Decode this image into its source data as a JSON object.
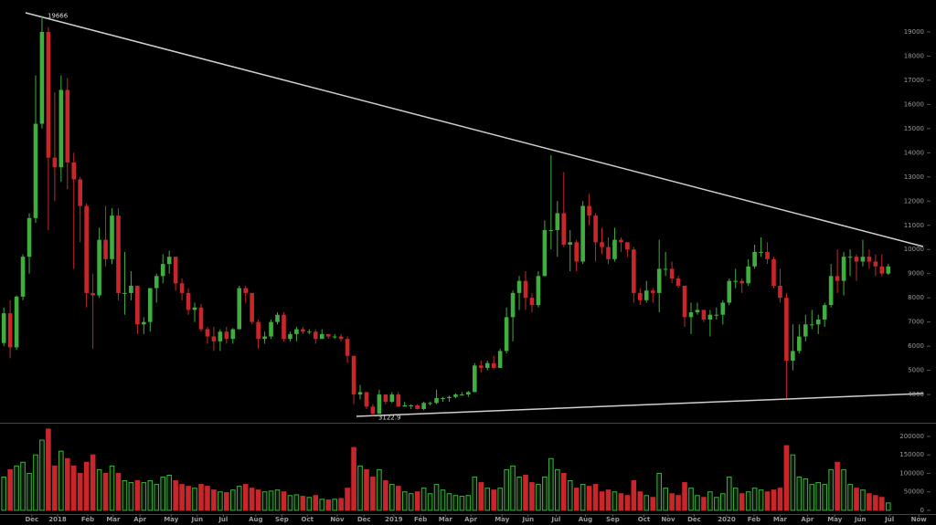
{
  "chart_data": {
    "type": "candlestick",
    "up_color": "#3fae3f",
    "down_color": "#c8262b",
    "x": [
      0,
      1,
      2,
      3,
      4,
      5,
      6,
      7,
      8,
      9,
      10,
      11,
      12,
      13,
      14,
      15,
      16,
      17,
      18,
      19,
      20,
      21,
      22,
      23,
      24,
      25,
      26,
      27,
      28,
      29,
      30,
      31,
      32,
      33,
      34,
      35,
      36,
      37,
      38,
      39,
      40,
      41,
      42,
      43,
      44,
      45,
      46,
      47,
      48,
      49,
      50,
      51,
      52,
      53,
      54,
      55,
      56,
      57,
      58,
      59,
      60,
      61,
      62,
      63,
      64,
      65,
      66,
      67,
      68,
      69,
      70,
      71,
      72,
      73,
      74,
      75,
      76,
      77,
      78,
      79,
      80,
      81,
      82,
      83,
      84,
      85,
      86,
      87,
      88,
      89,
      90,
      91,
      92,
      93,
      94,
      95,
      96,
      97,
      98,
      99,
      100,
      101,
      102,
      103,
      104,
      105,
      106,
      107,
      108,
      109,
      110,
      111,
      112,
      113,
      114,
      115,
      116,
      117,
      118,
      119,
      120,
      121,
      122,
      123,
      124,
      125,
      126,
      127,
      128,
      129,
      130,
      131,
      132,
      133,
      134,
      135,
      136,
      137,
      138,
      139
    ],
    "open": [
      6130,
      7360,
      5950,
      8050,
      9700,
      11300,
      15200,
      19000,
      13800,
      13400,
      16600,
      13600,
      12900,
      11800,
      8200,
      8100,
      10400,
      9600,
      11400,
      8200,
      8200,
      8500,
      6900,
      7000,
      8400,
      8900,
      9400,
      9700,
      8600,
      8200,
      7500,
      7600,
      6700,
      6400,
      6200,
      6600,
      6300,
      6700,
      8400,
      8200,
      7000,
      6300,
      6400,
      7000,
      7300,
      6300,
      6500,
      6700,
      6600,
      6600,
      6300,
      6500,
      6400,
      6400,
      6300,
      5600,
      4000,
      4100,
      3500,
      3200,
      4000,
      3700,
      4000,
      3500,
      3550,
      3550,
      3400,
      3650,
      3650,
      3850,
      3850,
      3900,
      4000,
      4000,
      4100,
      5200,
      5100,
      5300,
      5100,
      5800,
      7200,
      8200,
      8700,
      8000,
      7700,
      8900,
      10800,
      10800,
      11500,
      10200,
      10300,
      9500,
      11800,
      11400,
      10300,
      10100,
      9600,
      10400,
      10300,
      10000,
      8200,
      7900,
      8300,
      8200,
      9200,
      9200,
      8800,
      8500,
      7200,
      7400,
      7500,
      7100,
      7300,
      7300,
      7800,
      8700,
      8700,
      8600,
      9300,
      9900,
      9900,
      9600,
      8500,
      8000,
      5400,
      5800,
      6400,
      6900,
      6900,
      7100,
      7700,
      8900,
      8700,
      9700,
      9700,
      9500,
      9700,
      9500,
      9300,
      9000
    ],
    "high": [
      7600,
      7900,
      8100,
      9800,
      11500,
      17200,
      19666,
      19200,
      16500,
      17200,
      17100,
      14000,
      13000,
      11900,
      9000,
      10900,
      11800,
      11700,
      11700,
      9900,
      9100,
      8500,
      7200,
      8400,
      9000,
      9800,
      9950,
      9700,
      8800,
      8400,
      7800,
      7750,
      6800,
      6800,
      6700,
      6800,
      6750,
      8500,
      8500,
      8200,
      7100,
      6600,
      7100,
      7400,
      7400,
      6600,
      6800,
      6800,
      6700,
      6700,
      6700,
      6500,
      6500,
      6500,
      6400,
      5600,
      4400,
      4100,
      3600,
      4200,
      4000,
      4100,
      4100,
      3700,
      3600,
      3600,
      3700,
      3700,
      4200,
      3900,
      3950,
      4050,
      4100,
      4150,
      5300,
      5400,
      5400,
      5600,
      5900,
      7600,
      8300,
      8900,
      9100,
      8200,
      9100,
      11200,
      13900,
      12000,
      13200,
      10800,
      10400,
      12000,
      12300,
      11500,
      10900,
      10500,
      10900,
      10500,
      10300,
      10100,
      8400,
      8700,
      8400,
      10400,
      9900,
      9500,
      8900,
      8500,
      7800,
      7800,
      7500,
      7500,
      7600,
      7900,
      8800,
      9200,
      8800,
      9600,
      10200,
      10500,
      10300,
      9700,
      9200,
      8200,
      6900,
      6900,
      7300,
      7500,
      7300,
      7800,
      9400,
      10000,
      9900,
      10000,
      9800,
      10400,
      10000,
      9800,
      9800,
      9400
    ],
    "low": [
      6000,
      5500,
      5850,
      7900,
      9000,
      11100,
      15000,
      10800,
      12000,
      12800,
      12500,
      9200,
      10300,
      7600,
      5900,
      8000,
      9300,
      9400,
      7900,
      7300,
      7900,
      6500,
      6500,
      6600,
      7800,
      8600,
      9000,
      8300,
      7900,
      7300,
      7000,
      6600,
      6100,
      5800,
      5800,
      6100,
      6100,
      6700,
      7800,
      6900,
      5900,
      6100,
      6300,
      6900,
      6200,
      6200,
      6200,
      6500,
      6500,
      6100,
      6300,
      6300,
      6300,
      6200,
      5300,
      3600,
      3800,
      3400,
      3122.9,
      3200,
      3600,
      3650,
      3500,
      3500,
      3400,
      3380,
      3350,
      3550,
      3600,
      3700,
      3700,
      3850,
      3950,
      3900,
      4100,
      4900,
      5000,
      5050,
      5100,
      5700,
      6200,
      7500,
      7500,
      7400,
      7600,
      8900,
      10000,
      9700,
      10100,
      9100,
      9100,
      9400,
      11000,
      9500,
      9800,
      9400,
      9500,
      9900,
      9700,
      7800,
      7700,
      7800,
      7800,
      7400,
      8900,
      8600,
      8400,
      6800,
      6500,
      7300,
      7000,
      6400,
      7100,
      6900,
      7700,
      8400,
      8200,
      8500,
      9200,
      9700,
      9400,
      8400,
      7800,
      3850,
      5000,
      5700,
      6200,
      6700,
      6500,
      6800,
      7600,
      8200,
      8100,
      8900,
      8700,
      9300,
      9200,
      8900,
      8900,
      8950
    ],
    "close": [
      7360,
      5950,
      8050,
      9700,
      11300,
      15200,
      19000,
      13800,
      13400,
      16600,
      13600,
      12900,
      11800,
      8200,
      8100,
      10400,
      9600,
      11400,
      8200,
      8200,
      8500,
      6900,
      7000,
      8400,
      8900,
      9400,
      9700,
      8600,
      8200,
      7500,
      7600,
      6700,
      6400,
      6200,
      6600,
      6300,
      6700,
      8400,
      8200,
      7000,
      6300,
      6400,
      7000,
      7300,
      6300,
      6500,
      6700,
      6600,
      6600,
      6300,
      6500,
      6400,
      6400,
      6300,
      5600,
      4000,
      4100,
      3500,
      3200,
      4000,
      3700,
      4000,
      3500,
      3550,
      3550,
      3400,
      3650,
      3650,
      3850,
      3850,
      3900,
      4000,
      4000,
      4100,
      5200,
      5100,
      5300,
      5100,
      5800,
      7200,
      8200,
      8700,
      8000,
      7700,
      8900,
      10800,
      10800,
      11500,
      10200,
      10300,
      9500,
      11800,
      11400,
      10300,
      10100,
      9600,
      10400,
      10300,
      10000,
      8200,
      7900,
      8300,
      8200,
      9200,
      9200,
      8800,
      8500,
      7200,
      7400,
      7500,
      7100,
      7300,
      7300,
      7800,
      8700,
      8700,
      8600,
      9300,
      9900,
      9900,
      9600,
      8500,
      8000,
      5400,
      5800,
      6400,
      6900,
      6900,
      7100,
      7700,
      8900,
      8700,
      9700,
      9700,
      9500,
      9700,
      9500,
      9300,
      9000,
      9300
    ],
    "volume": [
      90000,
      110000,
      120000,
      130000,
      100000,
      150000,
      190000,
      220000,
      120000,
      160000,
      140000,
      120000,
      100000,
      130000,
      150000,
      110000,
      100000,
      120000,
      100000,
      80000,
      75000,
      80000,
      75000,
      80000,
      70000,
      90000,
      95000,
      80000,
      70000,
      65000,
      60000,
      70000,
      65000,
      55000,
      50000,
      48000,
      55000,
      65000,
      70000,
      60000,
      55000,
      50000,
      52000,
      55000,
      50000,
      40000,
      42000,
      38000,
      35000,
      40000,
      30000,
      28000,
      30000,
      32000,
      60000,
      170000,
      120000,
      110000,
      90000,
      110000,
      80000,
      70000,
      65000,
      50000,
      45000,
      50000,
      60000,
      45000,
      70000,
      55000,
      45000,
      40000,
      38000,
      40000,
      90000,
      75000,
      60000,
      55000,
      60000,
      110000,
      120000,
      90000,
      95000,
      75000,
      70000,
      90000,
      140000,
      110000,
      100000,
      80000,
      60000,
      70000,
      65000,
      70000,
      50000,
      55000,
      50000,
      45000,
      40000,
      80000,
      50000,
      40000,
      35000,
      100000,
      60000,
      45000,
      40000,
      75000,
      60000,
      40000,
      35000,
      50000,
      35000,
      45000,
      90000,
      60000,
      45000,
      50000,
      60000,
      55000,
      50000,
      55000,
      60000,
      175000,
      150000,
      90000,
      85000,
      70000,
      75000,
      70000,
      110000,
      130000,
      110000,
      70000,
      60000,
      55000,
      45000,
      40000,
      35000,
      20000
    ],
    "xlim": [
      -0.6,
      146.5
    ],
    "xticks": [
      {
        "value": 4.4,
        "label": "Dec"
      },
      {
        "value": 8.45,
        "label": "2018"
      },
      {
        "value": 13.2,
        "label": "Feb"
      },
      {
        "value": 17.2,
        "label": "Mar"
      },
      {
        "value": 21.4,
        "label": "Apr"
      },
      {
        "value": 26.3,
        "label": "May"
      },
      {
        "value": 30.4,
        "label": "Jun"
      },
      {
        "value": 34.5,
        "label": "Jul"
      },
      {
        "value": 39.6,
        "label": "Aug"
      },
      {
        "value": 43.7,
        "label": "Sep"
      },
      {
        "value": 47.7,
        "label": "Oct"
      },
      {
        "value": 52.4,
        "label": "Nov"
      },
      {
        "value": 56.6,
        "label": "Dec"
      },
      {
        "value": 61.3,
        "label": "2019"
      },
      {
        "value": 65.5,
        "label": "Feb"
      },
      {
        "value": 69.4,
        "label": "Mar"
      },
      {
        "value": 73.4,
        "label": "Apr"
      },
      {
        "value": 78.3,
        "label": "May"
      },
      {
        "value": 82.4,
        "label": "Jun"
      },
      {
        "value": 86.8,
        "label": "Jul"
      },
      {
        "value": 91.4,
        "label": "Aug"
      },
      {
        "value": 95.7,
        "label": "Sep"
      },
      {
        "value": 100.6,
        "label": "Oct"
      },
      {
        "value": 104.4,
        "label": "Nov"
      },
      {
        "value": 108.5,
        "label": "Dec"
      },
      {
        "value": 113.6,
        "label": "2020"
      },
      {
        "value": 117.9,
        "label": "Feb"
      },
      {
        "value": 122,
        "label": "Mar"
      },
      {
        "value": 126.3,
        "label": "Apr"
      },
      {
        "value": 130.6,
        "label": "May"
      },
      {
        "value": 134.6,
        "label": "Jun"
      },
      {
        "value": 139.2,
        "label": "Jul"
      },
      {
        "value": 143.8,
        "label": "Now"
      }
    ],
    "ylim": [
      2870,
      20320
    ],
    "yticks": [
      4000,
      5000,
      6000,
      7000,
      8000,
      9000,
      10000,
      11000,
      12000,
      13000,
      14000,
      15000,
      16000,
      17000,
      18000,
      19000
    ],
    "volume_ylim": [
      -10000,
      232000
    ],
    "volume_yticks": [
      0,
      50000,
      100000,
      150000,
      200000
    ],
    "annotations": [
      "19666",
      "3122.9"
    ]
  }
}
